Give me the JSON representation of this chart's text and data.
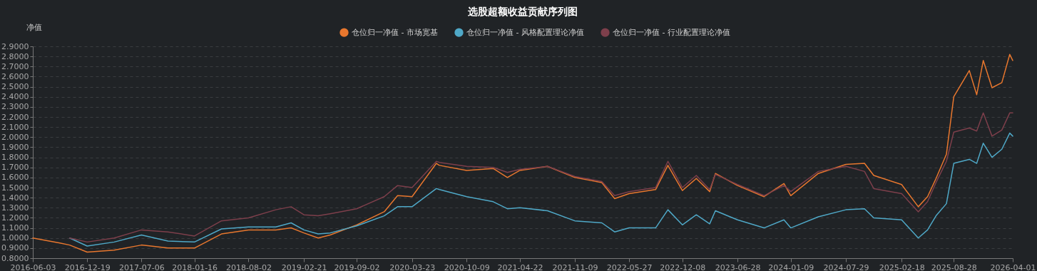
{
  "chart_data": {
    "type": "line",
    "title": "选股超额收益贡献序列图",
    "ylabel": "净值",
    "x": [
      "2016-06-03",
      "2016-09-10",
      "2016-10-16",
      "2016-12-19",
      "2017-03-28",
      "2017-07-06",
      "2017-10-11",
      "2018-01-16",
      "2018-04-25",
      "2018-08-02",
      "2018-11-10",
      "2019-01-05",
      "2019-02-21",
      "2019-04-14",
      "2019-05-28",
      "2019-09-02",
      "2019-12-12",
      "2020-01-30",
      "2020-03-23",
      "2020-06-20",
      "2020-07-01",
      "2020-10-09",
      "2021-01-14",
      "2021-03-07",
      "2021-04-22",
      "2021-08-01",
      "2021-11-09",
      "2022-02-16",
      "2022-04-04",
      "2022-05-27",
      "2022-09-01",
      "2022-10-16",
      "2022-12-08",
      "2023-01-28",
      "2023-03-18",
      "2023-04-08",
      "2023-06-28",
      "2023-10-03",
      "2023-12-15",
      "2024-01-09",
      "2024-04-19",
      "2024-07-29",
      "2024-10-05",
      "2024-11-08",
      "2025-02-18",
      "2025-04-20",
      "2025-05-24",
      "2025-06-24",
      "2025-08-01",
      "2025-08-28",
      "2025-10-24",
      "2025-11-20",
      "2025-12-14",
      "2026-01-15",
      "2026-02-20",
      "2026-03-21",
      "2026-04-01"
    ],
    "series": [
      {
        "name": "仓位归一净值 - 市场宽基",
        "color": "#e8772e",
        "values": [
          1.0,
          0.95,
          0.93,
          0.86,
          0.88,
          0.93,
          0.9,
          0.9,
          1.04,
          1.08,
          1.08,
          1.1,
          1.05,
          1.0,
          1.03,
          1.13,
          1.26,
          1.42,
          1.41,
          1.74,
          1.72,
          1.67,
          1.69,
          1.6,
          1.67,
          1.71,
          1.6,
          1.55,
          1.39,
          1.44,
          1.48,
          1.72,
          1.47,
          1.59,
          1.46,
          1.64,
          1.52,
          1.41,
          1.54,
          1.42,
          1.64,
          1.73,
          1.74,
          1.62,
          1.53,
          1.31,
          1.41,
          1.59,
          1.83,
          2.4,
          2.66,
          2.42,
          2.76,
          2.49,
          2.54,
          2.82,
          2.76
        ]
      },
      {
        "name": "仓位归一净值 - 风格配置理论净值",
        "color": "#4fa8c7",
        "values": [
          null,
          null,
          1.0,
          0.92,
          0.96,
          1.03,
          0.97,
          0.96,
          1.09,
          1.11,
          1.11,
          1.15,
          1.08,
          1.04,
          1.05,
          1.12,
          1.22,
          1.31,
          1.31,
          1.49,
          1.48,
          1.41,
          1.36,
          1.29,
          1.3,
          1.27,
          1.17,
          1.15,
          1.06,
          1.1,
          1.1,
          1.28,
          1.13,
          1.23,
          1.14,
          1.27,
          1.18,
          1.1,
          1.18,
          1.1,
          1.21,
          1.28,
          1.29,
          1.2,
          1.18,
          1.0,
          1.08,
          1.22,
          1.34,
          1.74,
          1.78,
          1.74,
          1.94,
          1.8,
          1.88,
          2.04,
          2.01
        ]
      },
      {
        "name": "仓位归一净值 - 行业配置理论净值",
        "color": "#7d3f4b",
        "values": [
          null,
          null,
          1.0,
          0.96,
          1.0,
          1.08,
          1.06,
          1.02,
          1.17,
          1.2,
          1.28,
          1.31,
          1.23,
          1.22,
          1.24,
          1.29,
          1.41,
          1.52,
          1.5,
          1.76,
          1.75,
          1.71,
          1.7,
          1.65,
          1.68,
          1.71,
          1.61,
          1.56,
          1.42,
          1.46,
          1.5,
          1.76,
          1.5,
          1.62,
          1.48,
          1.63,
          1.53,
          1.42,
          1.52,
          1.46,
          1.66,
          1.71,
          1.66,
          1.49,
          1.44,
          1.26,
          1.36,
          1.55,
          1.76,
          2.05,
          2.09,
          2.06,
          2.24,
          2.01,
          2.07,
          2.24,
          2.24
        ]
      }
    ],
    "xlim": [
      "2016-06-03",
      "2026-04-01"
    ],
    "xticks": [
      "2016-06-03",
      "2016-12-19",
      "2017-07-06",
      "2018-01-16",
      "2018-08-02",
      "2019-02-21",
      "2019-09-02",
      "2020-03-23",
      "2020-10-09",
      "2021-04-22",
      "2021-11-09",
      "2022-05-27",
      "2022-12-08",
      "2023-06-28",
      "2024-01-09",
      "2024-07-29",
      "2025-02-18",
      "2025-08-28",
      "2026-04-01"
    ],
    "ylim": [
      0.8,
      2.9
    ],
    "yticks": [
      {
        "value": 0.8,
        "label": "0.8000"
      },
      {
        "value": 0.9,
        "label": "0.9000"
      },
      {
        "value": 1.0,
        "label": "1.0000"
      },
      {
        "value": 1.1,
        "label": "1.1000"
      },
      {
        "value": 1.2,
        "label": "1.2000"
      },
      {
        "value": 1.3,
        "label": "1.3000"
      },
      {
        "value": 1.4,
        "label": "1.4000"
      },
      {
        "value": 1.5,
        "label": "1.5000"
      },
      {
        "value": 1.6,
        "label": "1.6000"
      },
      {
        "value": 1.7,
        "label": "1.7000"
      },
      {
        "value": 1.8,
        "label": "1.8000"
      },
      {
        "value": 1.9,
        "label": "1.9000"
      },
      {
        "value": 2.0,
        "label": "2.0000"
      },
      {
        "value": 2.1,
        "label": "2.1000"
      },
      {
        "value": 2.2,
        "label": "2.2000"
      },
      {
        "value": 2.3,
        "label": "2.3000"
      },
      {
        "value": 2.4,
        "label": "2.4000"
      },
      {
        "value": 2.5,
        "label": "2.5000"
      },
      {
        "value": 2.6,
        "label": "2.6000"
      },
      {
        "value": 2.7,
        "label": "2.7000"
      },
      {
        "value": 2.8,
        "label": "2.8000"
      },
      {
        "value": 2.9,
        "label": "2.9000"
      }
    ],
    "grid": "y",
    "legend": "top",
    "marker": "none",
    "line_style": "solid"
  }
}
